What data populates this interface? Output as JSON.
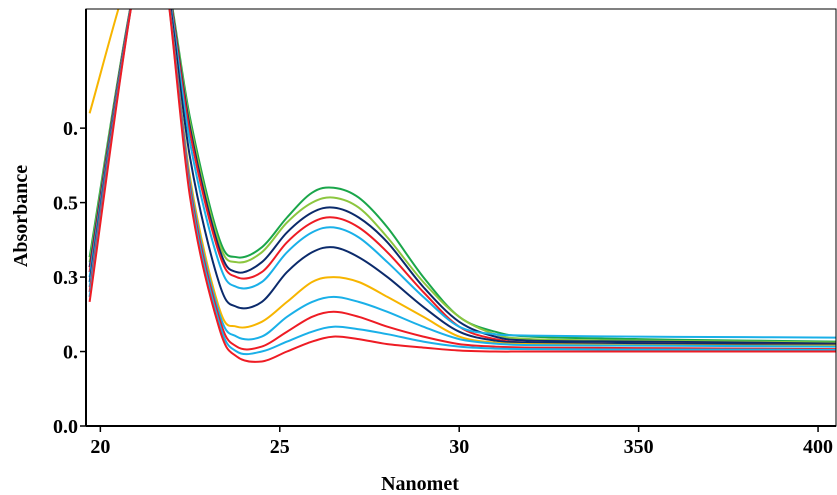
{
  "chart_data": {
    "type": "line",
    "title": "",
    "xlabel": "Nanomet",
    "ylabel": "Absorbance",
    "xlim": [
      196,
      405
    ],
    "ylim": [
      0.0,
      0.84
    ],
    "x_ticks": [
      {
        "value": 200,
        "label": "20"
      },
      {
        "value": 250,
        "label": "25"
      },
      {
        "value": 300,
        "label": "30"
      },
      {
        "value": 350,
        "label": "350"
      },
      {
        "value": 400,
        "label": "400"
      }
    ],
    "y_ticks": [
      {
        "value": 0.0,
        "label": "0.0"
      },
      {
        "value": 0.15,
        "label": "0."
      },
      {
        "value": 0.3,
        "label": "0.3"
      },
      {
        "value": 0.45,
        "label": "0.5"
      },
      {
        "value": 0.6,
        "label": "0."
      }
    ],
    "grid": false,
    "series": [
      {
        "color": "#1aa64a",
        "x": [
          197,
          210,
          217,
          225,
          233,
          238,
          245,
          252,
          259,
          265,
          272,
          280,
          290,
          300,
          310,
          320,
          350,
          380,
          405
        ],
        "y": [
          0.34,
          0.9,
          0.95,
          0.62,
          0.38,
          0.34,
          0.36,
          0.42,
          0.47,
          0.48,
          0.46,
          0.4,
          0.3,
          0.22,
          0.19,
          0.18,
          0.175,
          0.172,
          0.17
        ]
      },
      {
        "color": "#8cc63f",
        "x": [
          197,
          210,
          217,
          225,
          233,
          238,
          245,
          252,
          259,
          265,
          272,
          280,
          290,
          300,
          310,
          320,
          350,
          380,
          405
        ],
        "y": [
          0.33,
          0.9,
          0.95,
          0.61,
          0.37,
          0.33,
          0.35,
          0.41,
          0.45,
          0.46,
          0.44,
          0.38,
          0.29,
          0.22,
          0.185,
          0.175,
          0.172,
          0.17,
          0.168
        ]
      },
      {
        "color": "#0b2a6b",
        "x": [
          197,
          210,
          217,
          225,
          233,
          238,
          245,
          252,
          259,
          265,
          272,
          280,
          290,
          300,
          310,
          320,
          350,
          380,
          405
        ],
        "y": [
          0.32,
          0.9,
          0.95,
          0.6,
          0.36,
          0.31,
          0.33,
          0.39,
          0.43,
          0.44,
          0.42,
          0.37,
          0.28,
          0.21,
          0.18,
          0.172,
          0.17,
          0.168,
          0.166
        ]
      },
      {
        "color": "#ee1c24",
        "x": [
          197,
          210,
          217,
          225,
          233,
          238,
          245,
          252,
          259,
          265,
          272,
          280,
          290,
          300,
          310,
          320,
          350,
          380,
          405
        ],
        "y": [
          0.31,
          0.9,
          0.95,
          0.59,
          0.35,
          0.3,
          0.31,
          0.37,
          0.41,
          0.42,
          0.4,
          0.35,
          0.27,
          0.2,
          0.175,
          0.168,
          0.166,
          0.165,
          0.164
        ]
      },
      {
        "color": "#1ab0e8",
        "x": [
          197,
          210,
          217,
          225,
          233,
          238,
          245,
          252,
          259,
          265,
          272,
          280,
          290,
          300,
          310,
          320,
          350,
          380,
          405
        ],
        "y": [
          0.3,
          0.9,
          0.95,
          0.57,
          0.33,
          0.28,
          0.29,
          0.35,
          0.39,
          0.4,
          0.38,
          0.33,
          0.26,
          0.2,
          0.185,
          0.182,
          0.18,
          0.179,
          0.178
        ]
      },
      {
        "color": "#0b2a6b",
        "x": [
          197,
          210,
          217,
          225,
          233,
          238,
          245,
          252,
          259,
          265,
          272,
          280,
          290,
          300,
          310,
          320,
          350,
          380,
          405
        ],
        "y": [
          0.29,
          0.9,
          0.95,
          0.54,
          0.29,
          0.24,
          0.25,
          0.31,
          0.35,
          0.36,
          0.34,
          0.3,
          0.24,
          0.19,
          0.172,
          0.168,
          0.166,
          0.165,
          0.164
        ]
      },
      {
        "color": "#f7b500",
        "x": [
          197,
          210,
          217,
          225,
          233,
          238,
          245,
          252,
          259,
          265,
          272,
          280,
          290,
          300,
          310,
          320,
          350,
          380,
          405
        ],
        "y": [
          0.63,
          0.95,
          0.95,
          0.5,
          0.24,
          0.2,
          0.21,
          0.25,
          0.29,
          0.3,
          0.29,
          0.26,
          0.22,
          0.18,
          0.168,
          0.165,
          0.163,
          0.162,
          0.162
        ]
      },
      {
        "color": "#1ab0e8",
        "x": [
          197,
          210,
          217,
          225,
          233,
          238,
          245,
          252,
          259,
          265,
          272,
          280,
          290,
          300,
          310,
          320,
          350,
          380,
          405
        ],
        "y": [
          0.28,
          0.9,
          0.95,
          0.49,
          0.23,
          0.18,
          0.18,
          0.22,
          0.25,
          0.26,
          0.25,
          0.23,
          0.2,
          0.175,
          0.166,
          0.163,
          0.162,
          0.161,
          0.16
        ]
      },
      {
        "color": "#ee1c24",
        "x": [
          197,
          210,
          217,
          225,
          233,
          238,
          245,
          252,
          259,
          265,
          272,
          280,
          290,
          300,
          310,
          320,
          350,
          380,
          405
        ],
        "y": [
          0.27,
          0.9,
          0.95,
          0.48,
          0.22,
          0.16,
          0.16,
          0.19,
          0.22,
          0.23,
          0.22,
          0.2,
          0.18,
          0.165,
          0.16,
          0.158,
          0.157,
          0.156,
          0.155
        ]
      },
      {
        "color": "#1ab0e8",
        "x": [
          197,
          210,
          217,
          225,
          233,
          238,
          245,
          252,
          259,
          265,
          272,
          280,
          290,
          300,
          310,
          320,
          350,
          380,
          405
        ],
        "y": [
          0.26,
          0.9,
          0.95,
          0.47,
          0.21,
          0.15,
          0.15,
          0.17,
          0.19,
          0.2,
          0.195,
          0.185,
          0.17,
          0.16,
          0.156,
          0.155,
          0.154,
          0.154,
          0.153
        ]
      },
      {
        "color": "#ee1c24",
        "x": [
          197,
          210,
          217,
          225,
          233,
          238,
          245,
          252,
          259,
          265,
          272,
          280,
          290,
          300,
          310,
          320,
          350,
          380,
          405
        ],
        "y": [
          0.25,
          0.9,
          0.95,
          0.46,
          0.2,
          0.14,
          0.13,
          0.15,
          0.17,
          0.18,
          0.175,
          0.165,
          0.158,
          0.152,
          0.15,
          0.15,
          0.15,
          0.15,
          0.15
        ]
      }
    ]
  }
}
